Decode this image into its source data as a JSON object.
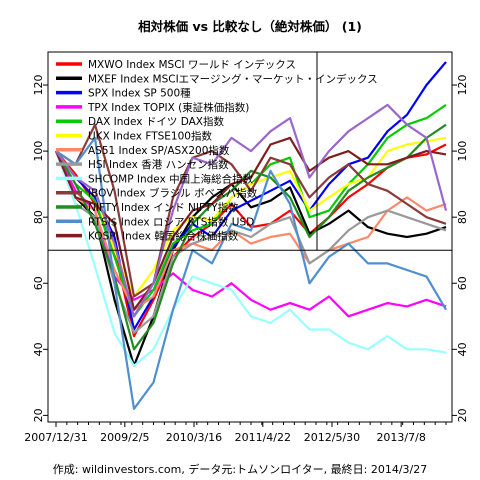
{
  "chart_data": {
    "type": "line",
    "title": "相対株価 vs 比較なし（絶対株価） (1)",
    "footer": "作成: wildinvestors.com, データ元:トムソンロイター, 最終日: 2014/3/27",
    "xlabel": "",
    "ylabel": "",
    "x_ticks": [
      "2007/12/31",
      "2009/2/5",
      "2010/3/16",
      "2011/4/22",
      "2012/5/30",
      "2013/7/8"
    ],
    "y_ticks": [
      "20",
      "40",
      "60",
      "80",
      "100",
      "120"
    ],
    "ylim": [
      18,
      130
    ],
    "xlim": [
      "2007/12/31",
      "2014/3/27"
    ],
    "reference_line": 70,
    "grid": false,
    "legend_position": "top-left",
    "series": [
      {
        "name": "MXWO Index MSCI ワールド インデックス",
        "color": "#ff0000",
        "values": [
          100,
          93,
          84,
          70,
          44,
          55,
          68,
          74,
          78,
          84,
          77,
          78,
          82,
          75,
          80,
          86,
          90,
          95,
          98,
          99,
          102
        ]
      },
      {
        "name": "MXEF Index MSCIエマージング・マーケット・インデックス",
        "color": "#000000",
        "values": [
          100,
          86,
          80,
          55,
          35,
          50,
          70,
          80,
          86,
          90,
          83,
          85,
          89,
          75,
          78,
          82,
          77,
          75,
          74,
          75,
          77
        ]
      },
      {
        "name": "SPX Index SP 500種",
        "color": "#0000ff",
        "values": [
          100,
          92,
          86,
          74,
          46,
          56,
          71,
          78,
          74,
          82,
          85,
          88,
          91,
          82,
          90,
          96,
          98,
          106,
          111,
          120,
          127
        ]
      },
      {
        "name": "TPX Index TOPIX (東証株価指数)",
        "color": "#ff00ff",
        "values": [
          100,
          88,
          82,
          62,
          55,
          58,
          63,
          58,
          56,
          60,
          55,
          52,
          54,
          52,
          56,
          50,
          52,
          54,
          53,
          55,
          53
        ]
      },
      {
        "name": "DAX Index ドイツ DAX指数",
        "color": "#00cc00",
        "values": [
          100,
          90,
          85,
          68,
          50,
          58,
          72,
          76,
          78,
          86,
          90,
          96,
          98,
          80,
          82,
          90,
          96,
          104,
          108,
          110,
          114
        ]
      },
      {
        "name": "UKX Index FTSE100指数",
        "color": "#ffff00",
        "values": [
          100,
          92,
          88,
          70,
          56,
          64,
          76,
          80,
          79,
          86,
          90,
          92,
          94,
          82,
          86,
          90,
          92,
          100,
          102,
          103,
          104
        ]
      },
      {
        "name": "AS51 Index SP/ASX200指数",
        "color": "#ff8866",
        "values": [
          100,
          86,
          82,
          64,
          52,
          56,
          70,
          72,
          70,
          76,
          72,
          74,
          75,
          66,
          70,
          72,
          74,
          82,
          86,
          82,
          84
        ]
      },
      {
        "name": "HSI Index 香港 ハンセン指数",
        "color": "#999999",
        "values": [
          100,
          84,
          80,
          60,
          45,
          50,
          68,
          72,
          74,
          76,
          74,
          78,
          80,
          66,
          70,
          76,
          80,
          82,
          80,
          78,
          76
        ]
      },
      {
        "name": "SHCOMP Index 中国上海総合指数",
        "color": "#99ffff",
        "values": [
          100,
          84,
          65,
          45,
          35,
          40,
          52,
          62,
          60,
          58,
          50,
          48,
          52,
          46,
          46,
          42,
          40,
          44,
          40,
          40,
          39
        ]
      },
      {
        "name": "IBOV Index ブラジル ボベスパ指数",
        "color": "#8b3a3a",
        "values": [
          100,
          96,
          108,
          88,
          56,
          60,
          86,
          98,
          100,
          96,
          88,
          98,
          96,
          86,
          92,
          96,
          90,
          88,
          84,
          80,
          78
        ]
      },
      {
        "name": "NIFTY Index インド NIFTY指数",
        "color": "#228b22",
        "values": [
          100,
          90,
          78,
          62,
          40,
          48,
          66,
          78,
          84,
          88,
          94,
          92,
          86,
          74,
          80,
          88,
          92,
          95,
          98,
          104,
          108
        ]
      },
      {
        "name": "RTSI$ Index ロシア RTS指数 USD",
        "color": "#4f8fcf",
        "values": [
          100,
          96,
          104,
          60,
          22,
          30,
          52,
          70,
          66,
          78,
          76,
          94,
          84,
          60,
          68,
          72,
          66,
          66,
          64,
          62,
          52
        ]
      },
      {
        "name": "KOSPI Index 韓国総合株価指数",
        "color": "#7f1e1e",
        "values": [
          100,
          86,
          84,
          78,
          52,
          60,
          74,
          82,
          84,
          90,
          92,
          102,
          104,
          94,
          98,
          100,
          96,
          96,
          98,
          100,
          99
        ]
      },
      {
        "name": "",
        "color": "#9966cc",
        "values": [
          100,
          92,
          88,
          72,
          50,
          60,
          82,
          98,
          96,
          104,
          100,
          106,
          110,
          92,
          100,
          106,
          110,
          114,
          108,
          104,
          82
        ]
      }
    ]
  }
}
